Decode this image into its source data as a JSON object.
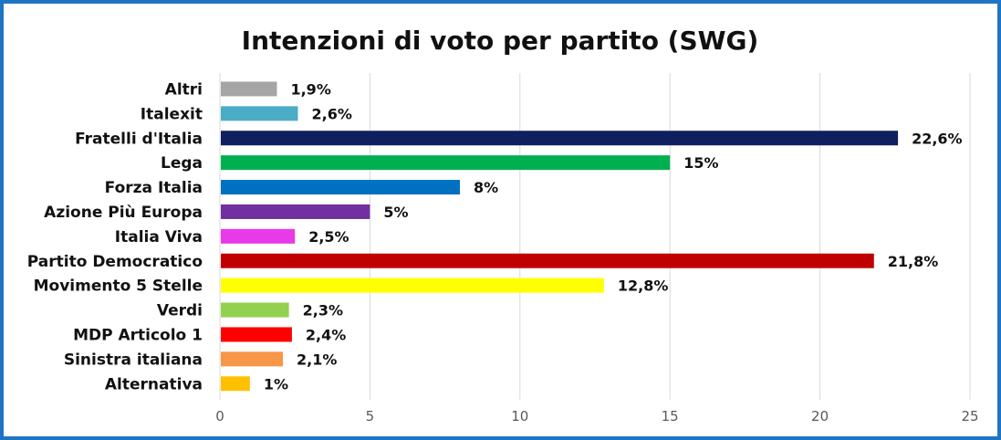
{
  "chart_data": {
    "type": "bar",
    "orientation": "horizontal",
    "title": "Intenzioni di voto per partito (SWG)",
    "categories": [
      "Altri",
      "Italexit",
      "Fratelli d'Italia",
      "Lega",
      "Forza Italia",
      "Azione Più Europa",
      "Italia Viva",
      "Partito Democratico",
      "Movimento 5 Stelle",
      "Verdi",
      "MDP Articolo 1",
      "Sinistra italiana",
      "Alternativa"
    ],
    "values": [
      1.9,
      2.6,
      22.6,
      15,
      8,
      5,
      2.5,
      21.8,
      12.8,
      2.3,
      2.4,
      2.1,
      1
    ],
    "value_labels": [
      "1,9%",
      "2,6%",
      "22,6%",
      "15%",
      "8%",
      "5%",
      "2,5%",
      "21,8%",
      "12,8%",
      "2,3%",
      "2,4%",
      "2,1%",
      "1%"
    ],
    "colors": [
      "#a5a5a5",
      "#4bacc6",
      "#0f1f5f",
      "#00b050",
      "#0070c0",
      "#7030a0",
      "#e83ae8",
      "#c00000",
      "#ffff00",
      "#92d050",
      "#ff0000",
      "#f79646",
      "#ffc000"
    ],
    "xlim": [
      0,
      25
    ],
    "xticks": [
      "0",
      "5",
      "10",
      "15",
      "20",
      "25"
    ],
    "xlabel": "",
    "ylabel": "",
    "grid": true,
    "legend": "none",
    "border_color": "#1f75c4"
  }
}
